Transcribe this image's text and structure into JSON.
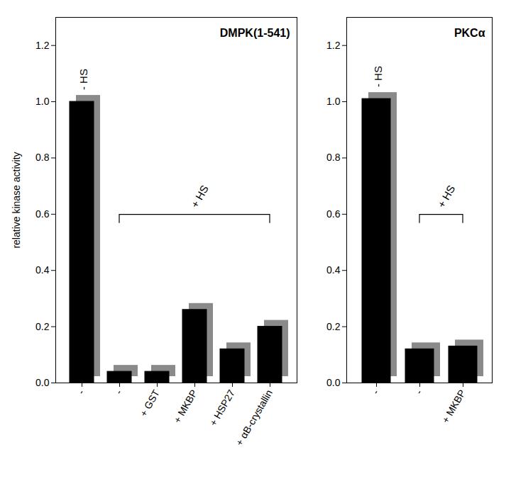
{
  "chart_data": [
    {
      "type": "bar",
      "title": "DMPK(1-541)",
      "y_label": "relative kinase activity",
      "categories": [
        "-",
        "-",
        "+ GST",
        "+ MKBP",
        "+ HSP27",
        "+ αB-crystallin"
      ],
      "values": [
        1.0,
        0.04,
        0.04,
        0.26,
        0.12,
        0.2
      ],
      "color": "#000000",
      "ylim": [
        0,
        1.3
      ],
      "yticks": [
        {
          "value": 0,
          "label": "0.0"
        },
        {
          "value": 0.2,
          "label": "0.2"
        },
        {
          "value": 0.4,
          "label": "0.4"
        },
        {
          "value": 0.6,
          "label": "0.6"
        },
        {
          "value": 0.8,
          "label": "0.8"
        },
        {
          "value": 1.0,
          "label": "1.0"
        },
        {
          "value": 1.2,
          "label": "1.2"
        }
      ],
      "annotations": [
        "- HS",
        "+ HS"
      ]
    },
    {
      "type": "bar",
      "title": "PKCα",
      "categories": [
        "-",
        "-",
        "+ MKBP"
      ],
      "values": [
        1.01,
        0.12,
        0.13
      ],
      "color": "#000000",
      "ylim": [
        0,
        1.3
      ],
      "yticks": [
        {
          "value": 0,
          "label": "0.0"
        },
        {
          "value": 0.2,
          "label": "0.2"
        },
        {
          "value": 0.4,
          "label": "0.4"
        },
        {
          "value": 0.6,
          "label": "0.6"
        },
        {
          "value": 0.8,
          "label": "0.8"
        },
        {
          "value": 1.0,
          "label": "1.0"
        },
        {
          "value": 1.2,
          "label": "1.2"
        }
      ],
      "annotations": [
        "- HS",
        "+ HS"
      ]
    }
  ]
}
